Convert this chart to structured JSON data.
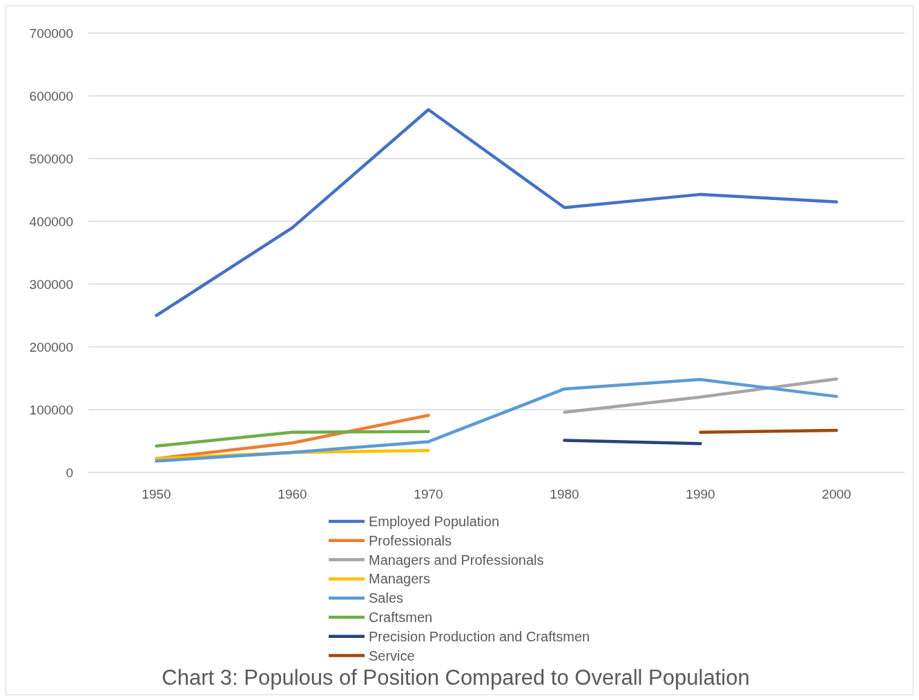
{
  "chart_data": {
    "type": "line",
    "title": "Chart 3: Populous of Position Compared to Overall Population",
    "categories": [
      "1950",
      "1960",
      "1970",
      "1980",
      "1990",
      "2000"
    ],
    "ylim": [
      0,
      700000
    ],
    "yticks": [
      0,
      100000,
      200000,
      300000,
      400000,
      500000,
      600000,
      700000
    ],
    "grid": "y",
    "legend": "bottom",
    "marker": "none",
    "line_style": "solid",
    "series": [
      {
        "name": "Employed Population",
        "color": "#4472c4",
        "values": [
          250000,
          390000,
          578000,
          422000,
          443000,
          431000
        ]
      },
      {
        "name": "Professionals",
        "color": "#ed7d31",
        "values": [
          22000,
          47000,
          91000,
          null,
          null,
          null
        ]
      },
      {
        "name": "Managers and Professionals",
        "color": "#a5a5a5",
        "values": [
          null,
          null,
          null,
          96000,
          120000,
          149000
        ]
      },
      {
        "name": "Managers",
        "color": "#ffc000",
        "values": [
          22000,
          32000,
          35000,
          null,
          null,
          null
        ]
      },
      {
        "name": "Sales",
        "color": "#5b9bd5",
        "values": [
          18000,
          32000,
          49000,
          133000,
          148000,
          121000
        ]
      },
      {
        "name": "Craftsmen",
        "color": "#70ad47",
        "values": [
          42000,
          64000,
          65000,
          null,
          null,
          null
        ]
      },
      {
        "name": "Precision Production and Craftsmen",
        "color": "#264478",
        "values": [
          null,
          null,
          null,
          51000,
          46000,
          null
        ]
      },
      {
        "name": "Service",
        "color": "#9e480e",
        "values": [
          null,
          null,
          null,
          null,
          64000,
          67000
        ]
      }
    ]
  }
}
